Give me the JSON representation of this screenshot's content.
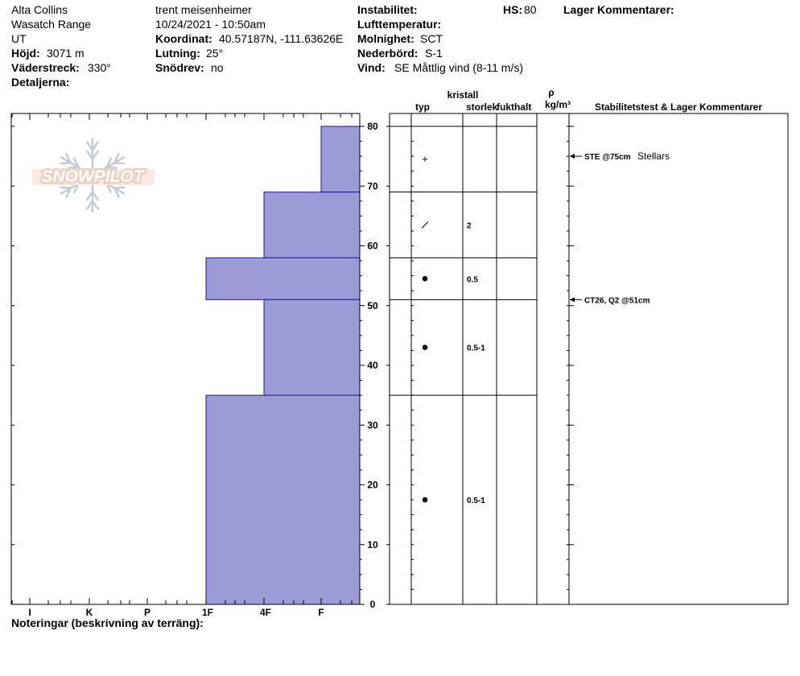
{
  "header": {
    "location": "Alta Collins",
    "range": "Wasatch Range",
    "state": "UT",
    "elevation_label": "Höjd:",
    "elevation_value": "3071 m",
    "aspect_label": "Väderstreck:",
    "aspect_value": "330°",
    "details_label": "Detaljerna:",
    "observer": "trent meisenheimer",
    "datetime": "10/24/2021 - 10:50am",
    "coord_label": "Koordinat:",
    "coord_value": "40.57187N, -111.63626E",
    "slope_label": "Lutning:",
    "slope_value": "25°",
    "drift_label": "Snödrev:",
    "drift_value": "no",
    "instability_label": "Instabilitet:",
    "airtemp_label": "Lufttemperatur:",
    "cloud_label": "Molnighet:",
    "cloud_value": "SCT",
    "precip_label": "Nederbörd:",
    "precip_value": "S-1",
    "wind_label": "Vind:",
    "wind_value": "SE  Måttlig vind (8-11 m/s)",
    "hs_label": "HS:",
    "hs_value": "80",
    "layer_comments_label": "Lager Kommentarer:"
  },
  "logo": {
    "text": "SNOWPILOT"
  },
  "columns": {
    "crystal": "kristall",
    "type": "typ",
    "size": "storlek",
    "moisture": "fukthalt",
    "rho": "ρ",
    "density_unit": "kg/m³",
    "stability": "Stabilitetstest & Lager Kommentarer"
  },
  "notes_label": "Noteringar (beskrivning av terräng):",
  "colors": {
    "bar_fill": "#9b9bd6",
    "bar_stroke": "#1c1c8c"
  },
  "chart_data": {
    "type": "bar",
    "orientation": "horizontal",
    "hardness_scale": [
      "I",
      "K",
      "P",
      "1F",
      "4F",
      "F"
    ],
    "y_axis_ticks": [
      "0",
      "10",
      "20",
      "30",
      "40",
      "50",
      "60",
      "70",
      "80"
    ],
    "ylim": [
      0,
      80
    ],
    "layers": [
      {
        "bottom": 69,
        "top": 80,
        "hardness": "F",
        "symbol": "+",
        "size": ""
      },
      {
        "bottom": 58,
        "top": 69,
        "hardness": "4F",
        "symbol": "/",
        "size": "2"
      },
      {
        "bottom": 51,
        "top": 58,
        "hardness": "1F",
        "symbol": "●",
        "size": "0.5"
      },
      {
        "bottom": 35,
        "top": 51,
        "hardness": "4F",
        "symbol": "●",
        "size": "0.5-1"
      },
      {
        "bottom": 0,
        "top": 35,
        "hardness": "1F",
        "symbol": "●",
        "size": "0.5-1"
      }
    ],
    "stability_tests": [
      {
        "depth": 75,
        "label": "STE @75cm",
        "comment": "Stellars"
      },
      {
        "depth": 51,
        "label": "CT26, Q2 @51cm",
        "comment": ""
      }
    ]
  }
}
